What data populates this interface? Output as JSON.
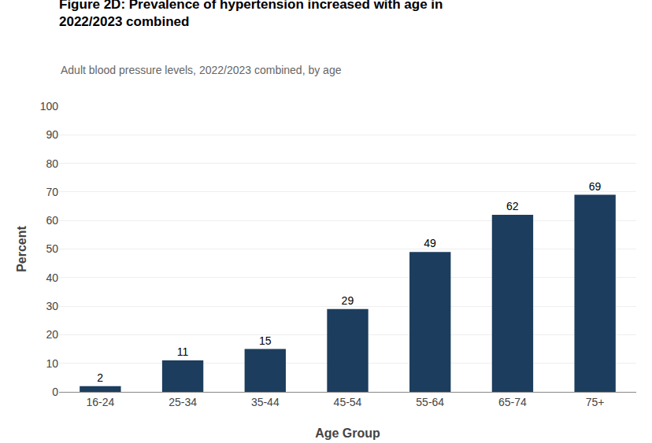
{
  "chart_data": {
    "type": "bar",
    "title": "Figure 2D: Prevalence of hypertension increased with age in\n2022/2023 combined",
    "subtitle": "Adult blood pressure levels, 2022/2023 combined, by age",
    "categories": [
      "16-24",
      "25-34",
      "35-44",
      "45-54",
      "55-64",
      "65-74",
      "75+"
    ],
    "values": [
      2,
      11,
      15,
      29,
      49,
      62,
      69
    ],
    "color": "#1c3d5e",
    "xlabel": "Age Group",
    "ylabel": "Percent",
    "ylim": [
      0,
      100
    ],
    "yticks": [
      0,
      10,
      20,
      30,
      40,
      50,
      60,
      70,
      80,
      90,
      100
    ],
    "grid": true,
    "data_labels": true
  }
}
